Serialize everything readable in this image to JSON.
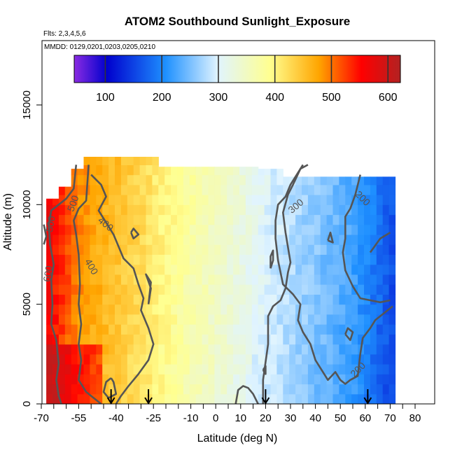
{
  "chart_data": {
    "type": "heatmap",
    "title": "ATOM2 Southbound Sunlight_Exposure",
    "flights_label": "Flts: 2,3,4,5,6",
    "dates_label": "MMDD: 0129,0201,0203,0205,0210",
    "xlabel": "Latitude (deg N)",
    "ylabel": "Altitude (m)",
    "xlim": [
      -70,
      82
    ],
    "ylim": [
      0,
      17500
    ],
    "x_ticks": [
      -70,
      -55,
      -40,
      -25,
      -10,
      0,
      10,
      20,
      30,
      40,
      50,
      60,
      70,
      80
    ],
    "x_tick_labels": [
      "-70",
      "-55",
      "-40",
      "-25",
      "-10",
      "0",
      "10",
      "20",
      "30",
      "40",
      "50",
      "60",
      "70",
      "80"
    ],
    "y_ticks": [
      0,
      5000,
      10000,
      15000
    ],
    "y_tick_labels": [
      "0",
      "5000",
      "10000",
      "15000"
    ],
    "colorbar": {
      "range": [
        45,
        622
      ],
      "ticks": [
        100,
        200,
        300,
        400,
        500,
        600
      ],
      "tick_labels": [
        "100",
        "200",
        "300",
        "400",
        "500",
        "600"
      ],
      "colors": [
        "#8a2be2",
        "#0000cd",
        "#1e90ff",
        "#e0f4ff",
        "#ffff90",
        "#ffa500",
        "#ff0000",
        "#b22222"
      ]
    },
    "contour_labels": [
      {
        "text": "500",
        "lat": -56,
        "alt": 10000,
        "rotate": -70
      },
      {
        "text": "500",
        "lat": -65,
        "alt": 9000,
        "rotate": -80
      },
      {
        "text": "400",
        "lat": -45,
        "alt": 8900,
        "rotate": 40
      },
      {
        "text": "400",
        "lat": -51,
        "alt": 6800,
        "rotate": 60
      },
      {
        "text": "600",
        "lat": -66,
        "alt": 6500,
        "rotate": -80
      },
      {
        "text": "300",
        "lat": 33,
        "alt": 9800,
        "rotate": -40
      },
      {
        "text": "200",
        "lat": 58,
        "alt": 10200,
        "rotate": 45
      },
      {
        "text": "200",
        "lat": 58,
        "alt": 1600,
        "rotate": -45
      }
    ],
    "flight_arrows_lat": [
      -42,
      -27,
      20,
      61
    ]
  }
}
